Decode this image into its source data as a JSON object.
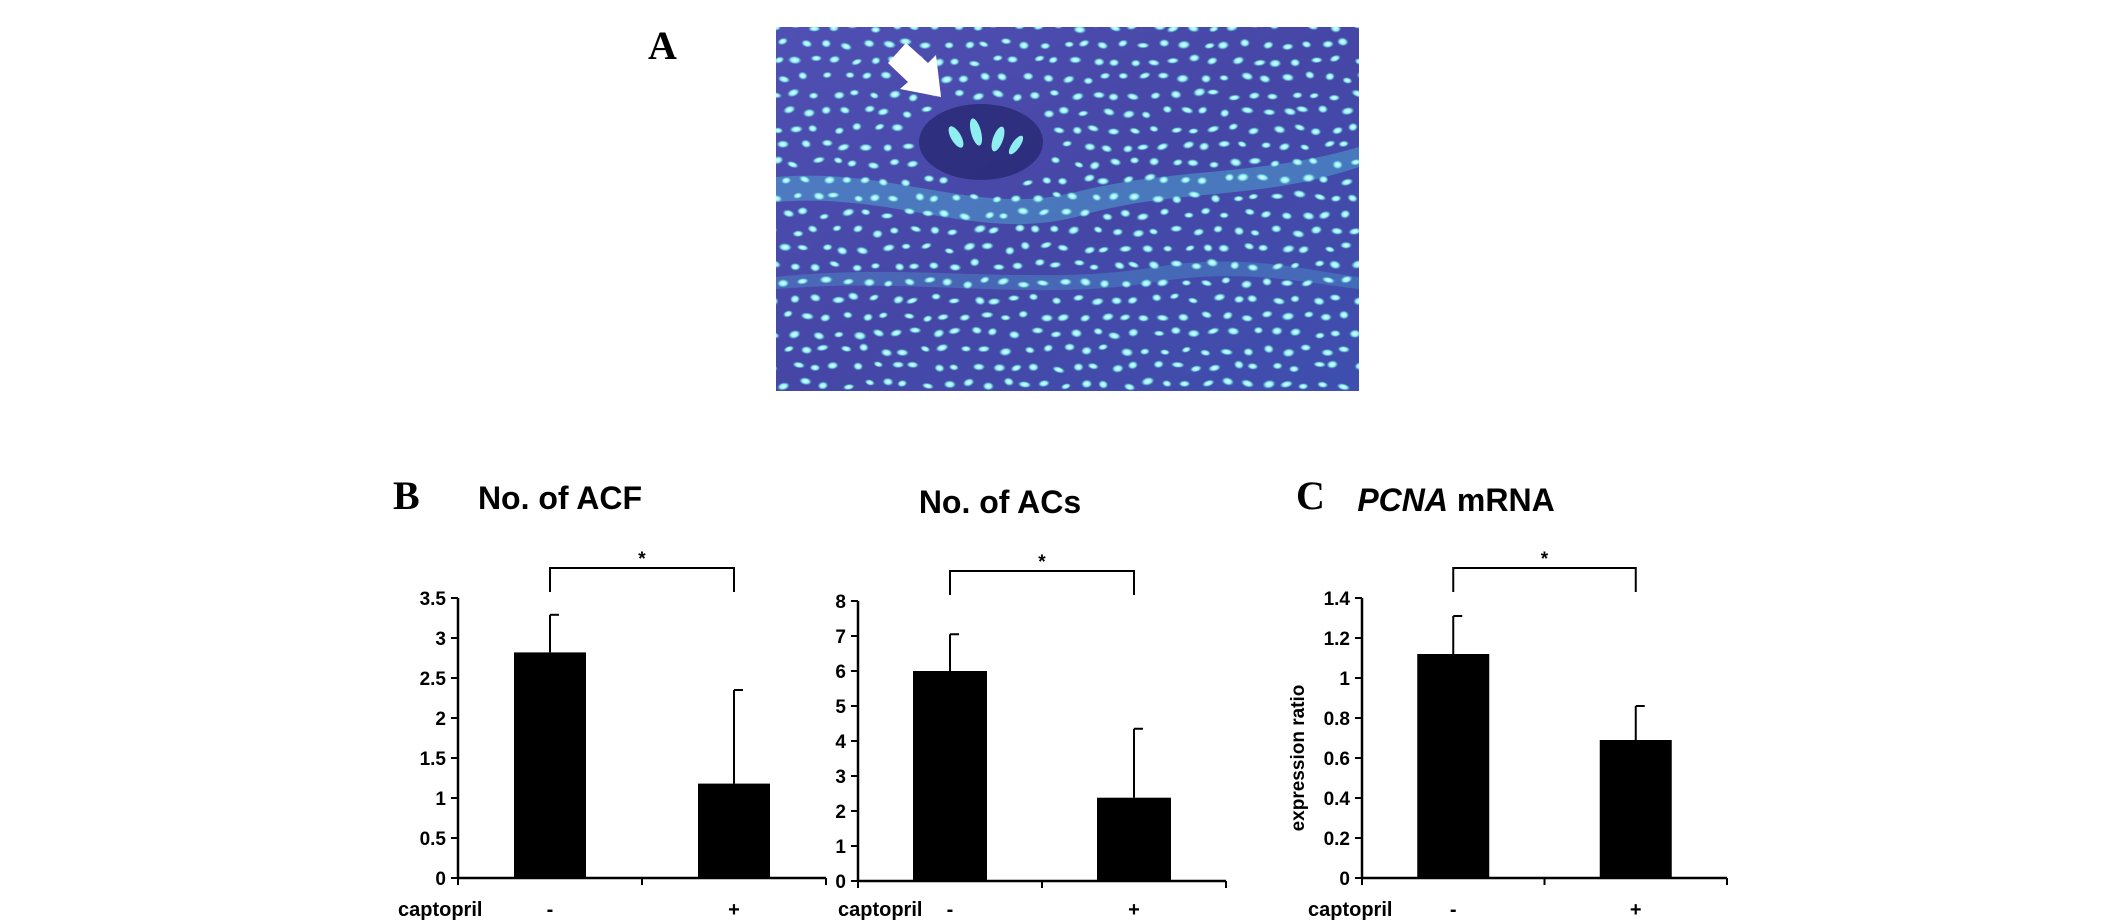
{
  "panel_labels": {
    "a": "A",
    "b": "B",
    "c": "C"
  },
  "image": {
    "bg_color": "#4a4aa8",
    "accent": "#6fe3e6"
  },
  "chart_data": [
    {
      "type": "bar",
      "title": "No. of ACF",
      "row_label": "captopril",
      "categories": [
        "-",
        "+"
      ],
      "values": [
        2.82,
        1.18
      ],
      "errors": [
        0.47,
        1.17
      ],
      "ylim": [
        0,
        3.5
      ],
      "yticks": [
        "0",
        "0.5",
        "1",
        "1.5",
        "2",
        "2.5",
        "3",
        "3.5"
      ],
      "ylabel": "",
      "significance": "*",
      "bar_color": "#000000"
    },
    {
      "type": "bar",
      "title": "No. of ACs",
      "row_label": "captopril",
      "categories": [
        "-",
        "+"
      ],
      "values": [
        6.0,
        2.38
      ],
      "errors": [
        1.05,
        1.97
      ],
      "ylim": [
        0,
        8
      ],
      "yticks": [
        "0",
        "1",
        "2",
        "3",
        "4",
        "5",
        "6",
        "7",
        "8"
      ],
      "ylabel": "",
      "significance": "*",
      "bar_color": "#000000"
    },
    {
      "type": "bar",
      "title_italic": "PCNA",
      "title_rest": " mRNA",
      "row_label": "captopril",
      "categories": [
        "-",
        "+"
      ],
      "values": [
        1.12,
        0.69
      ],
      "errors": [
        0.19,
        0.17
      ],
      "ylim": [
        0,
        1.4
      ],
      "yticks": [
        "0",
        "0.2",
        "0.4",
        "0.6",
        "0.8",
        "1",
        "1.2",
        "1.4"
      ],
      "ylabel": "expression ratio",
      "significance": "*",
      "bar_color": "#000000"
    }
  ]
}
